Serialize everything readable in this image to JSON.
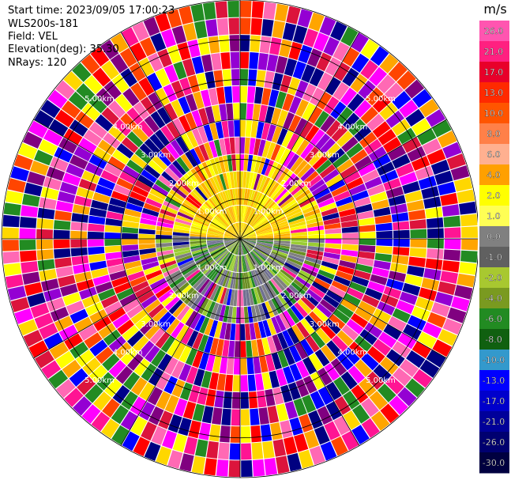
{
  "header": {
    "start_time": "Start time: 2023/09/05 17:00:23",
    "instrument": "WLS200s-181",
    "field": "Field: VEL",
    "elevation": "Elevation(deg): 35.30",
    "nrays": "NRays: 120"
  },
  "chart_data": {
    "type": "heatmap",
    "projection": "polar-ppi",
    "n_rays": 120,
    "n_gates": 14,
    "range_max_km": 6,
    "range_rings_km": [
      1,
      2,
      3,
      4,
      5,
      6
    ],
    "ring_labels": [
      "1.00km",
      "2.00km",
      "3.00km",
      "4.00km",
      "5.00km"
    ],
    "azimuth_lines_deg": [
      0,
      30,
      60,
      90,
      120,
      150,
      180,
      210,
      240,
      270,
      300,
      330
    ],
    "colorbar": {
      "unit": "m/s",
      "tick_labels": [
        "26.0",
        "21.0",
        "17.0",
        "13.0",
        "10.0",
        "8.0",
        "6.0",
        "4.0",
        "2.0",
        "1.0",
        "0.0",
        "-1.0",
        "-2.0",
        "-4.0",
        "-6.0",
        "-8.0",
        "-10.0",
        "-13.0",
        "-17.0",
        "-21.0",
        "-26.0",
        "-30.0"
      ],
      "colors": [
        "#ff55b0",
        "#ff2080",
        "#e8002a",
        "#ff2a00",
        "#ff5500",
        "#ff8048",
        "#ffb090",
        "#ffa000",
        "#ffff00",
        "#ffff55",
        "#808080",
        "#606060",
        "#a8c830",
        "#7a9a20",
        "#228b22",
        "#106010",
        "#3399cc",
        "#0000ff",
        "#0000cc",
        "#00009a",
        "#000070",
        "#000040"
      ]
    },
    "noise_colors": [
      "#ff1493",
      "#ff69b4",
      "#ff0000",
      "#ff4500",
      "#ffa500",
      "#ffff00",
      "#0000ff",
      "#00008b",
      "#000080",
      "#800080",
      "#9400d3",
      "#228b22",
      "#ffd700",
      "#ff00ff",
      "#dc143c"
    ],
    "near_field_colors": [
      "#ffd000",
      "#ffff00",
      "#ffb000",
      "#f0e000",
      "#808080",
      "#707090",
      "#9acd32",
      "#6b8e23",
      "#228b22"
    ]
  }
}
